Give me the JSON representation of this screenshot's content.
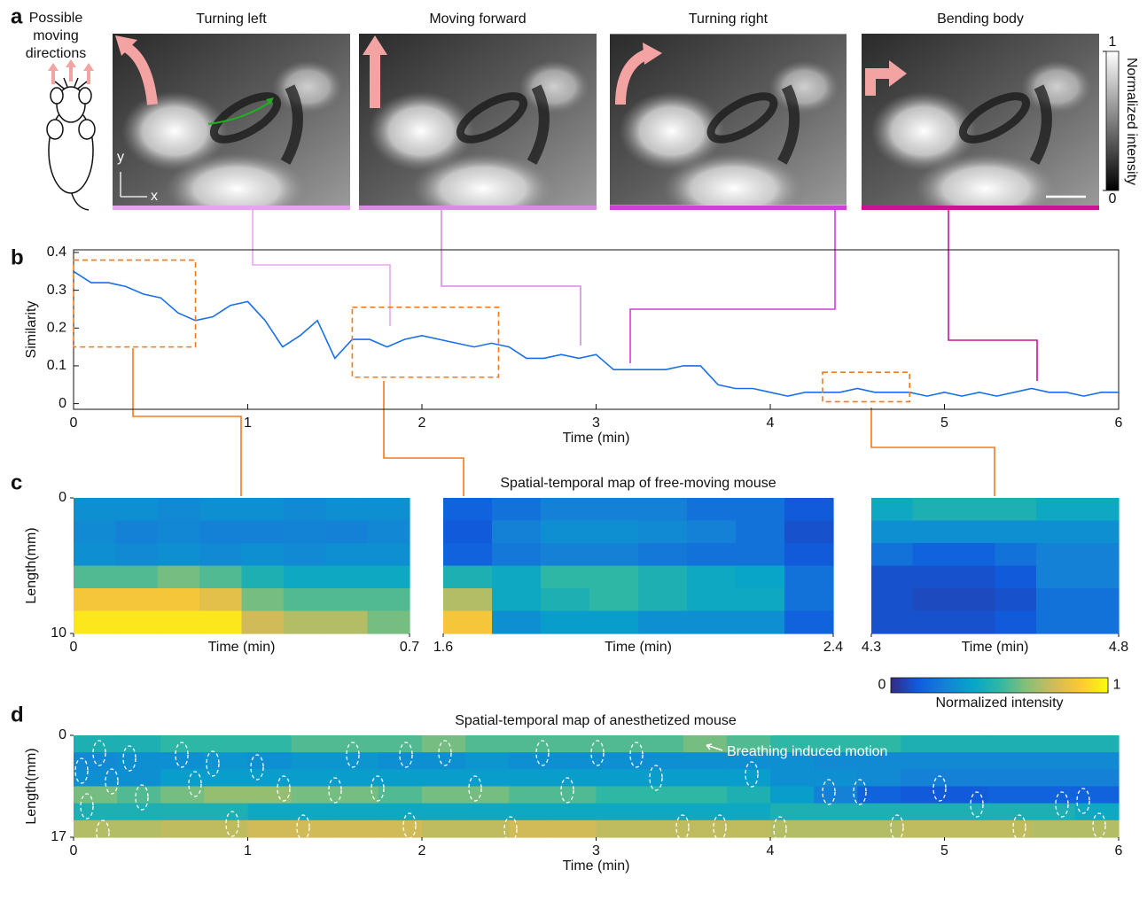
{
  "panel_labels": [
    "a",
    "b",
    "c",
    "d"
  ],
  "directions_label": "Possible moving directions",
  "photo_axes": {
    "x": "x",
    "y": "y"
  },
  "photos": [
    {
      "title": "Turning left",
      "color": "#e8a5ef"
    },
    {
      "title": "Moving forward",
      "color": "#d98ae2"
    },
    {
      "title": "Turning right",
      "color": "#d03fd6"
    },
    {
      "title": "Bending body",
      "color": "#cc1396"
    }
  ],
  "photo_colorbar": {
    "label": "Normalized intensity",
    "ticks": [
      0,
      1
    ],
    "lim": [
      0,
      1
    ]
  },
  "colormap": [
    "#352a87",
    "#0f5cdd",
    "#1481d6",
    "#06a4ca",
    "#2eb7a4",
    "#87bf77",
    "#d1bb59",
    "#fec832",
    "#f9fb0e"
  ],
  "chart_data": [
    {
      "type": "line",
      "color": "#1a6fe8",
      "xlabel": "Time (min)",
      "ylabel": "Similarity",
      "x": [
        0,
        0.1,
        0.2,
        0.3,
        0.4,
        0.5,
        0.6,
        0.7,
        0.8,
        0.9,
        1,
        1.1,
        1.2,
        1.3,
        1.4,
        1.5,
        1.6,
        1.7,
        1.8,
        1.9,
        2,
        2.1,
        2.2,
        2.3,
        2.4,
        2.5,
        2.6,
        2.7,
        2.8,
        2.9,
        3,
        3.1,
        3.2,
        3.3,
        3.4,
        3.5,
        3.6,
        3.7,
        3.8,
        3.9,
        4,
        4.1,
        4.2,
        4.3,
        4.4,
        4.5,
        4.6,
        4.7,
        4.8,
        4.9,
        5,
        5.1,
        5.2,
        5.3,
        5.4,
        5.5,
        5.6,
        5.7,
        5.8,
        5.9,
        6
      ],
      "values": [
        0.35,
        0.32,
        0.32,
        0.31,
        0.29,
        0.28,
        0.24,
        0.22,
        0.23,
        0.26,
        0.27,
        0.22,
        0.15,
        0.18,
        0.22,
        0.12,
        0.17,
        0.17,
        0.15,
        0.17,
        0.18,
        0.17,
        0.16,
        0.15,
        0.16,
        0.15,
        0.12,
        0.12,
        0.13,
        0.12,
        0.13,
        0.09,
        0.09,
        0.09,
        0.09,
        0.1,
        0.1,
        0.05,
        0.04,
        0.04,
        0.03,
        0.02,
        0.03,
        0.03,
        0.03,
        0.04,
        0.03,
        0.03,
        0.03,
        0.02,
        0.03,
        0.02,
        0.03,
        0.02,
        0.03,
        0.04,
        0.03,
        0.03,
        0.02,
        0.03,
        0.03
      ],
      "xlim": [
        0,
        6
      ],
      "ylim": [
        -0.015,
        0.407
      ],
      "xticks": [
        0,
        1,
        2,
        3,
        4,
        5,
        6
      ],
      "yticks": [
        0,
        0.1,
        0.2,
        0.3,
        0.4
      ],
      "highlight_color": "#f47a20",
      "highlights": [
        {
          "x": [
            0,
            0.7
          ],
          "y": [
            0.15,
            0.38
          ]
        },
        {
          "x": [
            1.6,
            2.44
          ],
          "y": [
            0.07,
            0.255
          ]
        },
        {
          "x": [
            4.3,
            4.8
          ],
          "y": [
            0.005,
            0.083
          ]
        }
      ]
    },
    {
      "type": "heatmap",
      "ylabel": "Length(mm)",
      "xlabel": "Time (min)",
      "xlim": [
        0,
        0.7
      ],
      "xticks": [
        0,
        0.7
      ],
      "ylim": [
        10,
        0
      ],
      "yticks": [
        0,
        10
      ],
      "z": [
        [
          0.3,
          0.3,
          0.28,
          0.3,
          0.3,
          0.28,
          0.3,
          0.3
        ],
        [
          0.28,
          0.25,
          0.27,
          0.25,
          0.25,
          0.26,
          0.25,
          0.27
        ],
        [
          0.3,
          0.28,
          0.3,
          0.28,
          0.3,
          0.28,
          0.3,
          0.3
        ],
        [
          0.55,
          0.55,
          0.6,
          0.55,
          0.45,
          0.4,
          0.4,
          0.4
        ],
        [
          0.85,
          0.85,
          0.85,
          0.8,
          0.6,
          0.55,
          0.55,
          0.55
        ],
        [
          0.95,
          0.95,
          0.95,
          0.95,
          0.75,
          0.7,
          0.7,
          0.6
        ]
      ]
    },
    {
      "type": "heatmap",
      "title": "Spatial-temporal map of free-moving mouse",
      "xlabel": "Time (min)",
      "xlim": [
        1.6,
        2.4
      ],
      "xticks": [
        1.6,
        2.4
      ],
      "z": [
        [
          0.15,
          0.2,
          0.25,
          0.25,
          0.25,
          0.2,
          0.2,
          0.12
        ],
        [
          0.12,
          0.25,
          0.3,
          0.3,
          0.28,
          0.25,
          0.2,
          0.1
        ],
        [
          0.15,
          0.22,
          0.25,
          0.25,
          0.22,
          0.2,
          0.2,
          0.12
        ],
        [
          0.45,
          0.4,
          0.5,
          0.5,
          0.45,
          0.4,
          0.38,
          0.2
        ],
        [
          0.7,
          0.4,
          0.45,
          0.5,
          0.45,
          0.4,
          0.4,
          0.2
        ],
        [
          0.85,
          0.3,
          0.35,
          0.35,
          0.3,
          0.3,
          0.3,
          0.15
        ]
      ]
    },
    {
      "type": "heatmap",
      "xlabel": "Time (min)",
      "xlim": [
        4.3,
        4.8
      ],
      "xticks": [
        4.3,
        4.8
      ],
      "z": [
        [
          0.4,
          0.45,
          0.45,
          0.45,
          0.4,
          0.4
        ],
        [
          0.3,
          0.3,
          0.3,
          0.3,
          0.3,
          0.3
        ],
        [
          0.2,
          0.15,
          0.15,
          0.2,
          0.25,
          0.25
        ],
        [
          0.1,
          0.1,
          0.1,
          0.12,
          0.25,
          0.25
        ],
        [
          0.1,
          0.08,
          0.08,
          0.1,
          0.2,
          0.2
        ],
        [
          0.1,
          0.1,
          0.1,
          0.12,
          0.2,
          0.2
        ]
      ],
      "colorbar": {
        "label": "Normalized intensity",
        "ticks": [
          0,
          1
        ],
        "lim": [
          0,
          1
        ]
      }
    },
    {
      "type": "heatmap",
      "title": "Spatial-temporal map of anesthetized mouse",
      "ylabel": "Length(mm)",
      "xlabel": "Time (min)",
      "xlim": [
        0,
        6
      ],
      "xticks": [
        0,
        1,
        2,
        3,
        4,
        5,
        6
      ],
      "ylim": [
        17,
        0
      ],
      "yticks": [
        0,
        17
      ],
      "annotation": "Breathing induced motion",
      "z": [
        [
          0.45,
          0.45,
          0.5,
          0.5,
          0.5,
          0.55,
          0.55,
          0.55,
          0.6,
          0.55,
          0.55,
          0.55,
          0.55,
          0.55,
          0.6,
          0.55,
          0.5,
          0.5,
          0.5,
          0.45,
          0.45,
          0.45,
          0.45,
          0.45
        ],
        [
          0.28,
          0.3,
          0.3,
          0.32,
          0.3,
          0.32,
          0.32,
          0.3,
          0.3,
          0.32,
          0.3,
          0.3,
          0.3,
          0.3,
          0.3,
          0.3,
          0.3,
          0.28,
          0.28,
          0.28,
          0.28,
          0.28,
          0.28,
          0.28
        ],
        [
          0.3,
          0.3,
          0.35,
          0.35,
          0.35,
          0.35,
          0.35,
          0.35,
          0.35,
          0.35,
          0.35,
          0.35,
          0.35,
          0.35,
          0.35,
          0.35,
          0.3,
          0.3,
          0.28,
          0.25,
          0.25,
          0.25,
          0.25,
          0.25
        ],
        [
          0.6,
          0.55,
          0.6,
          0.65,
          0.65,
          0.6,
          0.6,
          0.55,
          0.6,
          0.6,
          0.55,
          0.55,
          0.5,
          0.5,
          0.5,
          0.45,
          0.35,
          0.25,
          0.15,
          0.12,
          0.12,
          0.15,
          0.15,
          0.15
        ],
        [
          0.45,
          0.45,
          0.45,
          0.45,
          0.4,
          0.4,
          0.4,
          0.4,
          0.4,
          0.4,
          0.4,
          0.4,
          0.4,
          0.4,
          0.4,
          0.4,
          0.45,
          0.45,
          0.45,
          0.45,
          0.45,
          0.45,
          0.45,
          0.4
        ],
        [
          0.7,
          0.7,
          0.72,
          0.72,
          0.75,
          0.75,
          0.75,
          0.75,
          0.72,
          0.72,
          0.75,
          0.75,
          0.72,
          0.72,
          0.72,
          0.72,
          0.7,
          0.7,
          0.7,
          0.72,
          0.72,
          0.72,
          0.7,
          0.7
        ]
      ]
    }
  ]
}
